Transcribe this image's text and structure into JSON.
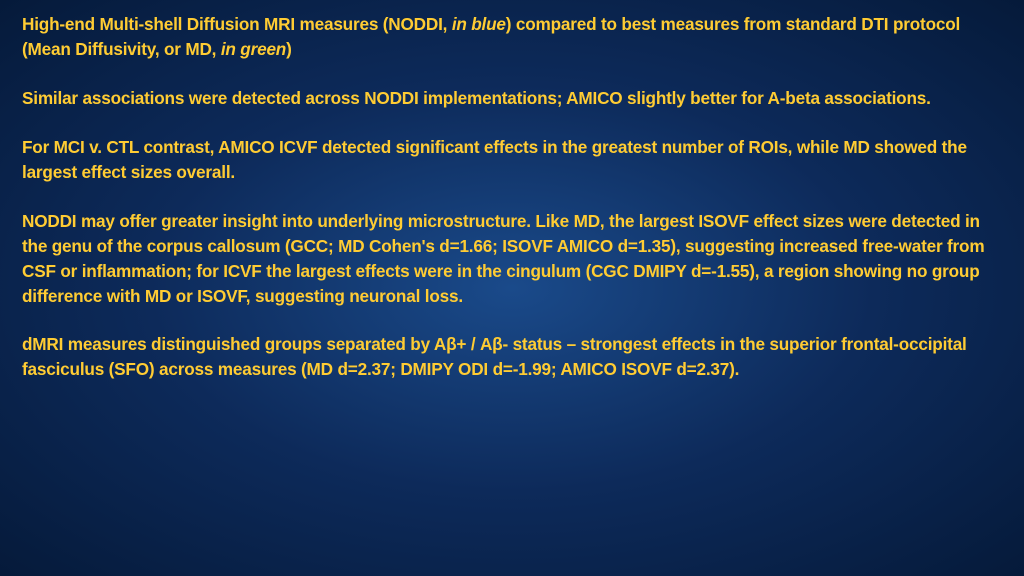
{
  "slide": {
    "background_gradient": [
      "#1a4a8a",
      "#0d2a5a",
      "#051a3a"
    ],
    "text_color": "#ffcc33",
    "font_family": "Arial Black",
    "font_size_pt": 13,
    "font_weight": 900,
    "paragraphs": [
      {
        "segments": [
          {
            "text": "High-end Multi-shell Diffusion MRI measures (NODDI, ",
            "italic": false
          },
          {
            "text": "in blue",
            "italic": true
          },
          {
            "text": ") compared to best measures from standard DTI protocol (Mean Diffusivity, or MD, ",
            "italic": false
          },
          {
            "text": "in green",
            "italic": true
          },
          {
            "text": ")",
            "italic": false
          }
        ]
      },
      {
        "segments": [
          {
            "text": "Similar associations were detected across NODDI implementations; AMICO slightly better for A-beta associations.",
            "italic": false
          }
        ]
      },
      {
        "segments": [
          {
            "text": "For MCI v. CTL contrast, AMICO ICVF detected significant effects in the greatest number of ROIs, while MD showed the largest effect sizes overall.",
            "italic": false
          }
        ]
      },
      {
        "segments": [
          {
            "text": "NODDI may offer greater insight into underlying microstructure. Like MD, the largest ISOVF effect sizes were detected in the genu of the corpus callosum (GCC; MD Cohen's d=1.66; ISOVF AMICO d=1.35), suggesting increased free-water from CSF or inflammation; for ICVF the largest effects were in the cingulum (CGC DMIPY d=-1.55), a region showing no group difference with MD or ISOVF, suggesting neuronal loss.",
            "italic": false
          }
        ]
      },
      {
        "segments": [
          {
            "text": "dMRI measures distinguished groups separated by Aβ+ / Aβ- status – strongest effects in the superior frontal-occipital fasciculus (SFO) across measures (MD d=2.37; DMIPY ODI d=-1.99; AMICO ISOVF d=2.37).",
            "italic": false
          }
        ]
      }
    ]
  }
}
